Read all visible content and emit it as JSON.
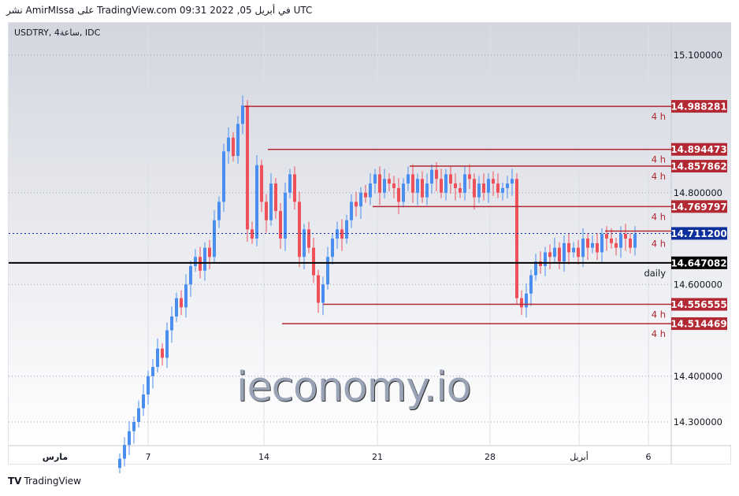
{
  "header": {
    "published": "نشر AmirMIssa على TradingView.com 09:31 2022 ,05 في أبريل UTC"
  },
  "symbol_label": "USDTRY, 4ساعة, IDC",
  "footer": {
    "brand": "TradingView"
  },
  "watermark": "ieconomy.io",
  "chart_data": {
    "type": "candlestick",
    "ylim": [
      14.245,
      15.17
    ],
    "y_ticks": [
      "15.100000",
      "14.800000",
      "14.600000",
      "14.400000",
      "14.300000"
    ],
    "y_tick_values": [
      15.1,
      14.8,
      14.6,
      14.4,
      14.3
    ],
    "x_ticks": [
      "مارس",
      "7",
      "14",
      "21",
      "28",
      "أبريل",
      "6"
    ],
    "grid": true,
    "colors": {
      "up": "#4a8ff0",
      "down": "#f0505a",
      "level": "#b22833",
      "current": "#0d2f9c",
      "daily": "#000000"
    },
    "closes": [
      14.22,
      14.25,
      14.28,
      14.3,
      14.33,
      14.36,
      14.4,
      14.42,
      14.46,
      14.44,
      14.5,
      14.53,
      14.57,
      14.55,
      14.6,
      14.64,
      14.66,
      14.63,
      14.68,
      14.66,
      14.74,
      14.78,
      14.89,
      14.92,
      14.88,
      14.95,
      14.99,
      14.72,
      14.7,
      14.86,
      14.78,
      14.74,
      14.82,
      14.76,
      14.7,
      14.8,
      14.84,
      14.78,
      14.66,
      14.72,
      14.68,
      14.62,
      14.56,
      14.6,
      14.66,
      14.7,
      14.72,
      14.7,
      14.74,
      14.78,
      14.77,
      14.8,
      14.79,
      14.82,
      14.84,
      14.8,
      14.83,
      14.82,
      14.81,
      14.78,
      14.82,
      14.84,
      14.8,
      14.83,
      14.79,
      14.82,
      14.85,
      14.83,
      14.8,
      14.84,
      14.82,
      14.81,
      14.8,
      14.84,
      14.83,
      14.79,
      14.82,
      14.8,
      14.83,
      14.82,
      14.8,
      14.81,
      14.82,
      14.83,
      14.57,
      14.55,
      14.58,
      14.62,
      14.65,
      14.64,
      14.67,
      14.66,
      14.68,
      14.65,
      14.69,
      14.67,
      14.68,
      14.66,
      14.7,
      14.68,
      14.69,
      14.67,
      14.71,
      14.7,
      14.69,
      14.68,
      14.71,
      14.7,
      14.68,
      14.71
    ],
    "levels": [
      {
        "label": "14.988281",
        "value": 14.988281,
        "tag": "4 h",
        "kind": "level"
      },
      {
        "label": "14.894473",
        "value": 14.894473,
        "tag": "4 h",
        "kind": "level"
      },
      {
        "label": "14.857862",
        "value": 14.857862,
        "tag": "4 h",
        "kind": "level"
      },
      {
        "label": "14.769797",
        "value": 14.769797,
        "tag": "4 h",
        "kind": "level"
      },
      {
        "label": "14.711200",
        "value": 14.7112,
        "tag": "4 h",
        "kind": "current"
      },
      {
        "label": "14.647082",
        "value": 14.647082,
        "tag": "daily",
        "kind": "daily"
      },
      {
        "label": "14.556555",
        "value": 14.556555,
        "tag": "4 h",
        "kind": "level"
      },
      {
        "label": "14.514469",
        "value": 14.514469,
        "tag": "4 h",
        "kind": "level"
      }
    ]
  }
}
